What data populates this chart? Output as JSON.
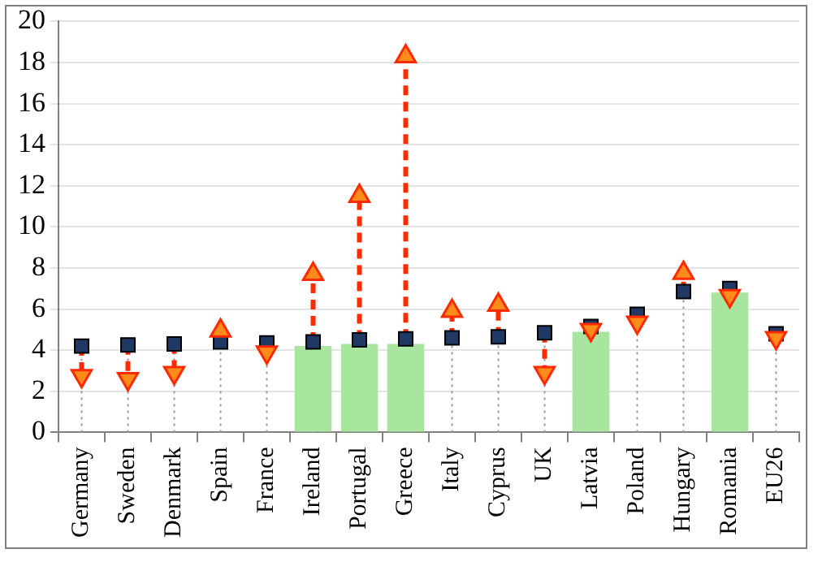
{
  "chart_data": {
    "type": "bar",
    "categories": [
      "Germany",
      "Sweden",
      "Denmark",
      "Spain",
      "France",
      "Ireland",
      "Portugal",
      "Greece",
      "Italy",
      "Cyprus",
      "UK",
      "Latvia",
      "Poland",
      "Hungary",
      "Romania",
      "EU26"
    ],
    "series": [
      {
        "color": "#a8e6a0",
        "values": [
          null,
          null,
          null,
          null,
          null,
          4.2,
          4.3,
          4.3,
          null,
          null,
          null,
          4.9,
          null,
          null,
          6.8,
          null
        ]
      },
      {
        "type": "scatter",
        "color": "#1f3864",
        "marker": "square",
        "values": [
          4.2,
          4.25,
          4.3,
          4.4,
          4.35,
          4.4,
          4.5,
          4.55,
          4.6,
          4.65,
          4.85,
          5.15,
          5.75,
          6.85,
          7.0,
          4.8
        ]
      },
      {
        "type": "scatter",
        "color": "#ff8c1a",
        "marker": "triangle",
        "values": [
          2.75,
          2.6,
          2.9,
          4.95,
          3.9,
          7.7,
          11.5,
          18.3,
          5.9,
          6.2,
          2.9,
          5.0,
          5.35,
          7.75,
          6.65,
          4.6
        ]
      }
    ],
    "ylim": [
      0,
      20
    ],
    "yticks": [
      0,
      2,
      4,
      6,
      8,
      10,
      12,
      14,
      16,
      18,
      20
    ],
    "grid": "y"
  }
}
